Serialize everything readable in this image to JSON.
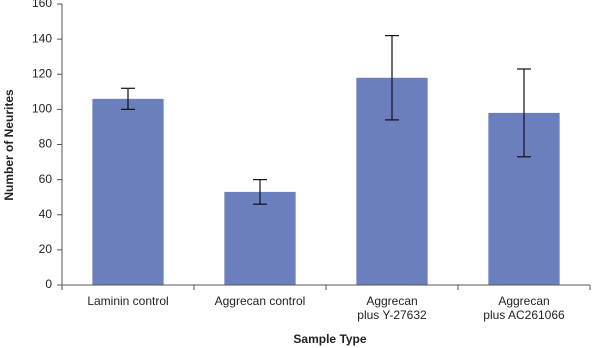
{
  "chart_data": {
    "type": "bar",
    "x_label": "Sample Type",
    "y_label": "Number of Neurites",
    "categories": [
      "Laminin control",
      "Aggrecan control",
      "Aggrecan\nplus Y-27632",
      "Aggrecan\nplus AC261066"
    ],
    "values": [
      106,
      53,
      118,
      98
    ],
    "errors": [
      6,
      7,
      24,
      25
    ],
    "color": "#6b7ebd",
    "ylim": [
      0,
      160
    ],
    "yticks": [
      0,
      20,
      40,
      60,
      80,
      100,
      120,
      140,
      160
    ],
    "grid": false
  }
}
